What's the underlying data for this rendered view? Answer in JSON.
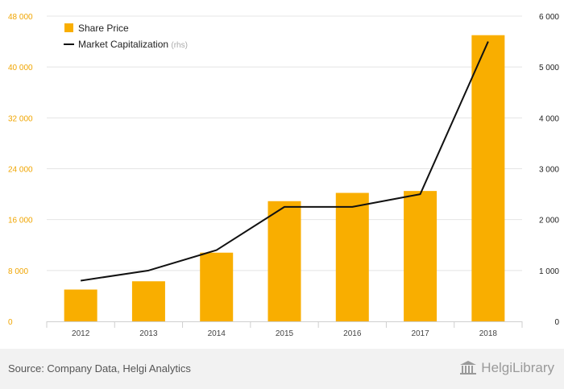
{
  "chart_data": {
    "type": "bar",
    "categories": [
      "2012",
      "2013",
      "2014",
      "2015",
      "2016",
      "2017",
      "2018"
    ],
    "series": [
      {
        "name": "Share Price",
        "type": "bar",
        "axis": "left",
        "values": [
          5000,
          6300,
          10800,
          18900,
          20200,
          20500,
          45000
        ]
      },
      {
        "name": "Market Capitalization",
        "type": "line",
        "axis": "right",
        "values": [
          800,
          1000,
          1400,
          2250,
          2250,
          2500,
          5500
        ]
      }
    ],
    "legend_suffix": "(rhs)",
    "y_left": {
      "lim": [
        0,
        48000
      ],
      "ticks": [
        "0",
        "8 000",
        "16 000",
        "24 000",
        "32 000",
        "40 000",
        "48 000"
      ]
    },
    "y_right": {
      "lim": [
        0,
        6000
      ],
      "ticks": [
        "0",
        "1 000",
        "2 000",
        "3 000",
        "4 000",
        "5 000",
        "6 000"
      ]
    },
    "grid": true,
    "legend_position": "top-left"
  },
  "colors": {
    "bar": "#f9ae00",
    "line": "#111111",
    "left_axis_text": "#f0a500",
    "right_axis_text": "#222222",
    "grid": "#e4e4e4",
    "category_text": "#444444"
  },
  "footer": {
    "source": "Source: Company Data, Helgi Analytics",
    "brand": "HelgiLibrary",
    "brand_icon": "library-columns-icon"
  }
}
